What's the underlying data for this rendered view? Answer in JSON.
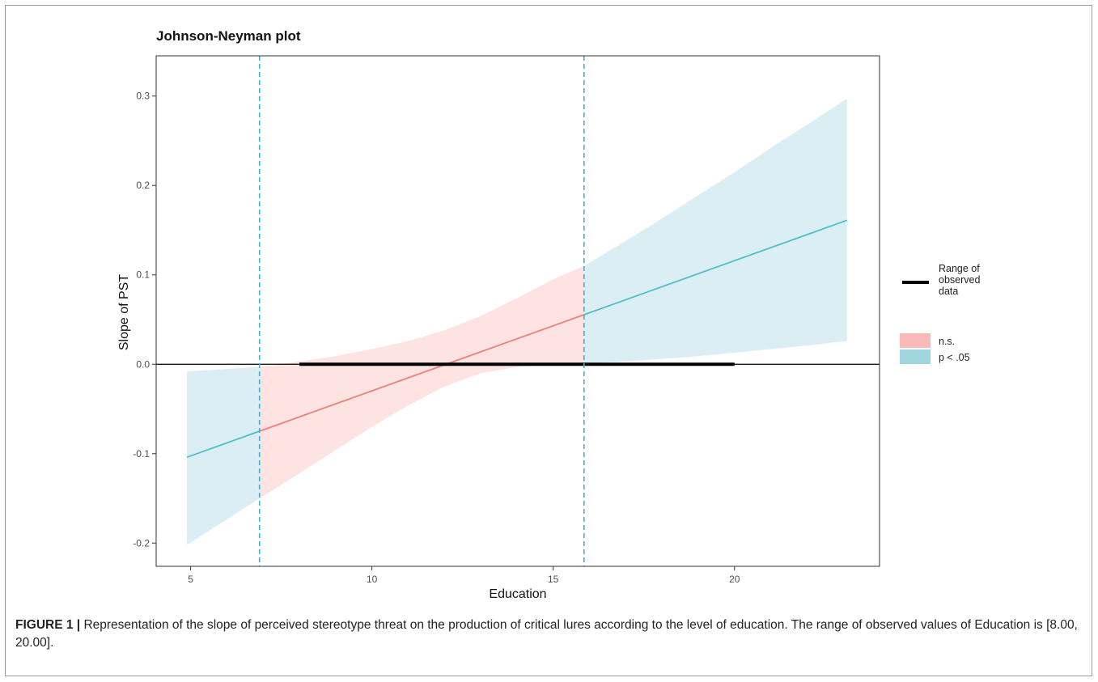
{
  "chart_data": {
    "type": "line",
    "title": "Johnson-Neyman plot",
    "xlabel": "Education",
    "ylabel": "Slope of PST",
    "xlim": [
      4.05,
      24.0
    ],
    "ylim": [
      -0.226,
      0.345
    ],
    "x_ticks": [
      5,
      10,
      15,
      20
    ],
    "y_ticks": [
      -0.2,
      -0.1,
      0.0,
      0.1,
      0.2,
      0.3
    ],
    "x_tick_labels": [
      "5",
      "10",
      "15",
      "20"
    ],
    "y_tick_labels": [
      "-0.2",
      "-0.1",
      "0.0",
      "0.1",
      "0.2",
      "0.3"
    ],
    "grid": false,
    "slope_line": {
      "x_start": 4.9,
      "y_start": -0.104,
      "x_end": 23.1,
      "y_end": 0.161
    },
    "confidence_band": [
      {
        "x": 4.9,
        "lower": -0.202,
        "upper": -0.008
      },
      {
        "x": 6.9,
        "lower": -0.15,
        "upper": -0.003
      },
      {
        "x": 8.0,
        "lower": -0.122,
        "upper": 0.003
      },
      {
        "x": 9.0,
        "lower": -0.096,
        "upper": 0.009
      },
      {
        "x": 10.0,
        "lower": -0.07,
        "upper": 0.017
      },
      {
        "x": 11.0,
        "lower": -0.046,
        "upper": 0.026
      },
      {
        "x": 12.0,
        "lower": -0.025,
        "upper": 0.038
      },
      {
        "x": 13.0,
        "lower": -0.01,
        "upper": 0.054
      },
      {
        "x": 14.0,
        "lower": -0.003,
        "upper": 0.074
      },
      {
        "x": 15.0,
        "lower": 0.0,
        "upper": 0.095
      },
      {
        "x": 15.85,
        "lower": 0.001,
        "upper": 0.11
      },
      {
        "x": 17.0,
        "lower": 0.003,
        "upper": 0.138
      },
      {
        "x": 18.0,
        "lower": 0.006,
        "upper": 0.163
      },
      {
        "x": 19.0,
        "lower": 0.009,
        "upper": 0.189
      },
      {
        "x": 20.0,
        "lower": 0.013,
        "upper": 0.215
      },
      {
        "x": 21.0,
        "lower": 0.017,
        "upper": 0.242
      },
      {
        "x": 22.0,
        "lower": 0.021,
        "upper": 0.268
      },
      {
        "x": 23.1,
        "lower": 0.026,
        "upper": 0.297
      }
    ],
    "significance_bounds": [
      6.9,
      15.85
    ],
    "zero_line": 0.0,
    "observed_range": [
      8.0,
      20.0
    ],
    "legend": {
      "placement": "right",
      "range_label": [
        "Range of",
        "observed",
        "data"
      ],
      "entries": [
        {
          "label": "n.s.",
          "color": "#f8b9b7"
        },
        {
          "label": "p < .05",
          "color": "#9fd6de"
        }
      ]
    },
    "colors": {
      "ns_band": "#fde3e2",
      "sig_band": "#daeef3",
      "ns_line": "#f0807a",
      "sig_line": "#4fbfc8",
      "bound_line": "#35b3d6",
      "range_bar": "#000000",
      "zero_line": "#000000",
      "panel_border": "#333333"
    }
  },
  "caption": {
    "label": "FIGURE 1 |",
    "text": "Representation of the slope of perceived stereotype threat on the production of critical lures according to the level of education. The range of observed values of Education is [8.00, 20.00]."
  }
}
